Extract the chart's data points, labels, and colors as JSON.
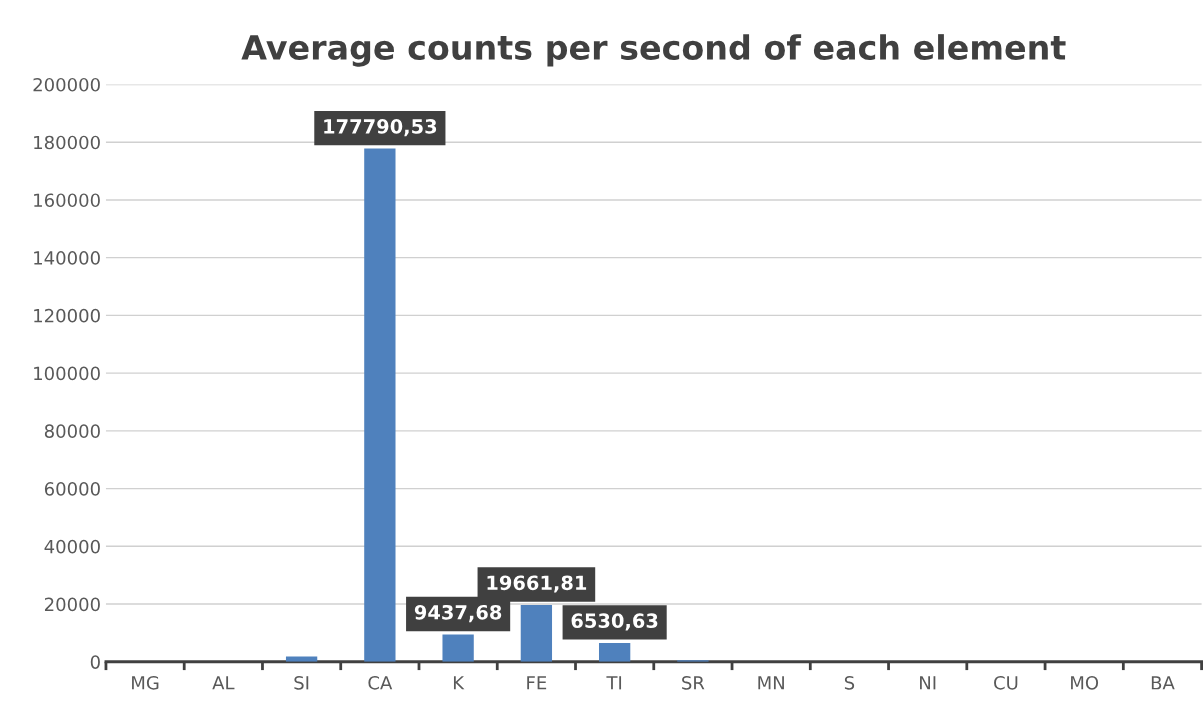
{
  "chart_data": {
    "type": "bar",
    "title": "Average counts per second of each element",
    "categories": [
      "MG",
      "AL",
      "SI",
      "CA",
      "K",
      "FE",
      "TI",
      "SR",
      "MN",
      "S",
      "NI",
      "CU",
      "MO",
      "BA"
    ],
    "values": [
      0,
      0,
      1800,
      177790.53,
      9437.68,
      19661.81,
      6530.63,
      500,
      null,
      0,
      0,
      0,
      0,
      0
    ],
    "value_labels": [
      null,
      null,
      null,
      "177790,53",
      "9437,68",
      "19661,81",
      "6530,63",
      null,
      null,
      null,
      null,
      null,
      null,
      null
    ],
    "color": "#4f81bd",
    "ylim": [
      0,
      200000
    ],
    "yticks": [
      0,
      20000,
      40000,
      60000,
      80000,
      100000,
      120000,
      140000,
      160000,
      180000,
      200000
    ],
    "grid": "y",
    "legend": false
  }
}
